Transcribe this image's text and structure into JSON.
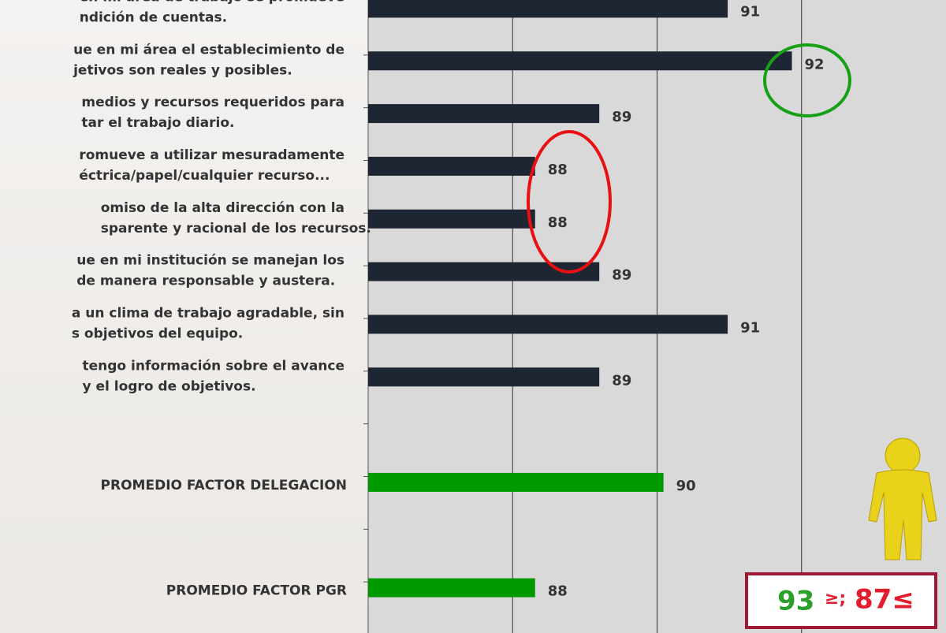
{
  "chart_data": {
    "type": "bar",
    "orientation": "horizontal",
    "categories": [
      [
        "en mi área de trabajo se promueve",
        "ndición de cuentas."
      ],
      [
        "ue en mi área el establecimiento de",
        "jetivos son reales y posibles."
      ],
      [
        "medios y recursos requeridos para",
        "tar el trabajo diario."
      ],
      [
        "romueve a utilizar mesuradamente",
        "éctrica/papel/cualquier recurso..."
      ],
      [
        "omiso de la alta dirección con la",
        "sparente y racional de los recursos."
      ],
      [
        "ue en mi institución se manejan los",
        "de manera responsable y austera."
      ],
      [
        "a un clima de trabajo agradable, sin",
        "s objetivos del equipo."
      ],
      [
        "tengo información sobre el avance",
        "y el logro de objetivos."
      ],
      null,
      [
        "PROMEDIO FACTOR DELEGACION"
      ],
      null,
      [
        "PROMEDIO FACTOR PGR"
      ]
    ],
    "values": [
      91,
      92,
      89,
      88,
      88,
      89,
      91,
      89,
      null,
      90,
      null,
      88
    ],
    "colors": [
      "#1e2633",
      "#1e2633",
      "#1e2633",
      "#1e2633",
      "#1e2633",
      "#1e2633",
      "#1e2633",
      "#1e2633",
      null,
      "#009a00",
      null,
      "#009a00"
    ],
    "xlim": [
      85.4,
      94.4
    ],
    "xticks": [
      87.65,
      89.9,
      92.15
    ],
    "grid": true,
    "annotations": [
      "93",
      "≥;",
      "87≤"
    ]
  }
}
